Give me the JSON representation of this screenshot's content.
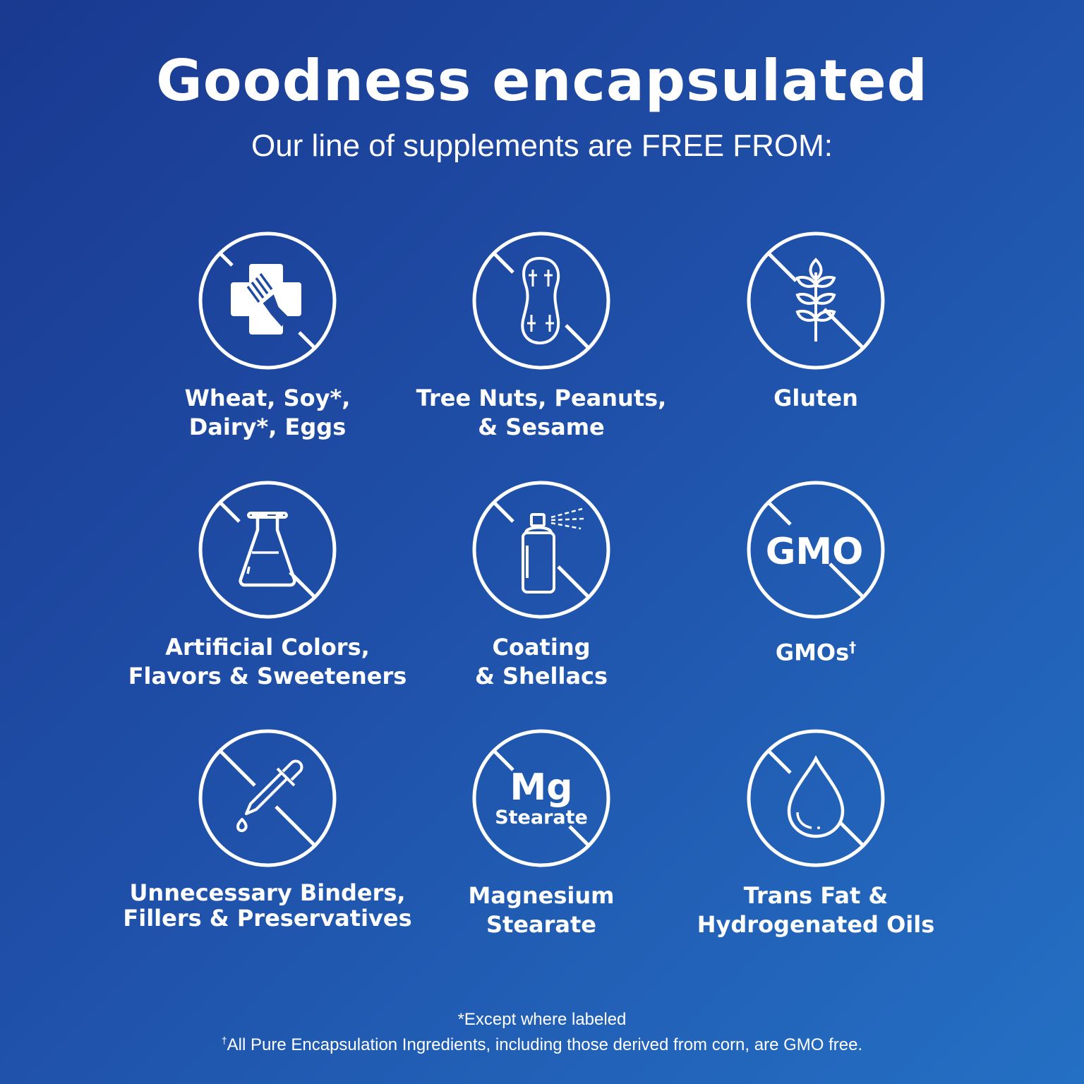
{
  "header": {
    "title": "Goodness encapsulated",
    "subtitle": "Our line of supplements are FREE FROM:"
  },
  "items": [
    {
      "icon": "allergen-cross-fork-icon",
      "lines": [
        "Wheat, Soy*,",
        "Dairy*, Eggs"
      ]
    },
    {
      "icon": "peanut-icon",
      "lines": [
        "Tree Nuts, Peanuts,",
        "& Sesame"
      ]
    },
    {
      "icon": "wheat-icon",
      "lines": [
        "Gluten"
      ]
    },
    {
      "icon": "flask-icon",
      "lines": [
        "Artificial Colors,",
        "Flavors & Sweeteners"
      ]
    },
    {
      "icon": "spray-can-icon",
      "lines": [
        "Coating",
        "& Shellacs"
      ]
    },
    {
      "icon": "gmo-icon",
      "icon_text": "GMO",
      "lines": [
        "GMOs"
      ],
      "superscript": "†"
    },
    {
      "icon": "dropper-icon",
      "lines": [
        "Unnecessary Binders,",
        "Fillers & Preservatives"
      ]
    },
    {
      "icon": "mg-stearate-icon",
      "icon_text": "Mg",
      "icon_subtext": "Stearate",
      "lines": [
        "Magnesium",
        "Stearate"
      ]
    },
    {
      "icon": "oil-drop-icon",
      "lines": [
        "Trans Fat &",
        "Hydrogenated Oils"
      ]
    }
  ],
  "footer": {
    "note1": "*Except where labeled",
    "note2_mark": "†",
    "note2": "All Pure Encapsulation Ingredients, including those derived from corn, are GMO free."
  },
  "colors": {
    "background_start": "#1a3990",
    "background_end": "#2470c4",
    "foreground": "#ffffff"
  }
}
